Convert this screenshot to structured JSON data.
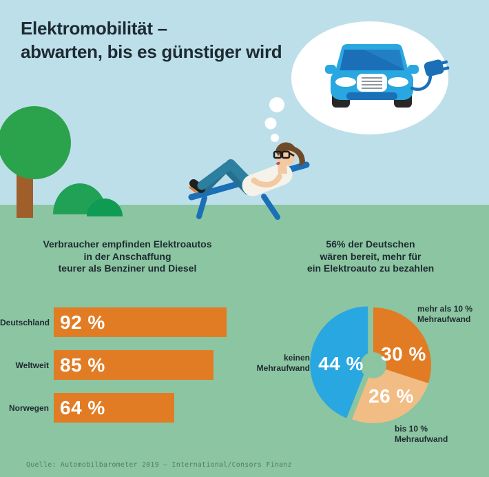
{
  "header": {
    "title_line1": "Elektromobilität –",
    "title_line2": "abwarten, bis es günstiger wird"
  },
  "scene": {
    "icons": [
      "tree-icon",
      "bush-icon",
      "thought-bubble",
      "electric-car-icon",
      "charging-plug-icon",
      "person-on-lounger-icon",
      "lounge-chair-icon"
    ]
  },
  "colors": {
    "sky": "#bddfea",
    "ground_green": "#8cc5a1",
    "text_dark": "#1e2b32",
    "orange": "#e27c24",
    "light_orange": "#f1bd85",
    "blue": "#29a7e0",
    "chair_blue": "#1a6fb7",
    "white": "#ffffff",
    "footer_text": "#527c66"
  },
  "chart_data": [
    {
      "type": "bar",
      "title": "Verbraucher empfinden Elektroautos in der Anschaffung teurer als Benziner und Diesel",
      "title_lines": [
        "Verbraucher empfinden Elektroautos",
        "in der Anschaffung",
        "teurer als Benziner und Diesel"
      ],
      "categories": [
        "Deutschland",
        "Weltweit",
        "Norwegen"
      ],
      "values": [
        92,
        85,
        64
      ],
      "value_labels": [
        "92 %",
        "85 %",
        "64 %"
      ],
      "unit": "%",
      "xlim": [
        0,
        100
      ],
      "bar_color": "#e27c24",
      "orientation": "horizontal",
      "grid": false
    },
    {
      "type": "pie",
      "title": "56% der Deutschen wären bereit, mehr für ein Elektroauto zu bezahlen",
      "title_lines": [
        "56% der Deutschen",
        "wären bereit, mehr für",
        "ein Elektroauto zu bezahlen"
      ],
      "start_angle_deg": 0,
      "donut_hole": true,
      "slices": [
        {
          "label": "mehr als 10 % Mehraufwand",
          "label_lines": [
            "mehr als 10 %",
            "Mehraufwand"
          ],
          "value": 30,
          "value_label": "30 %",
          "color": "#e27c24",
          "exploded": false
        },
        {
          "label": "bis 10 % Mehraufwand",
          "label_lines": [
            "bis 10 %",
            "Mehraufwand"
          ],
          "value": 26,
          "value_label": "26 %",
          "color": "#f1bd85",
          "exploded": false
        },
        {
          "label": "keinen Mehraufwand",
          "label_lines": [
            "keinen",
            "Mehraufwand"
          ],
          "value": 44,
          "value_label": "44 %",
          "color": "#29a7e0",
          "exploded": true
        }
      ]
    }
  ],
  "footer": {
    "source": "Quelle: Automobilbarometer 2019 – International/Consors Finanz"
  }
}
